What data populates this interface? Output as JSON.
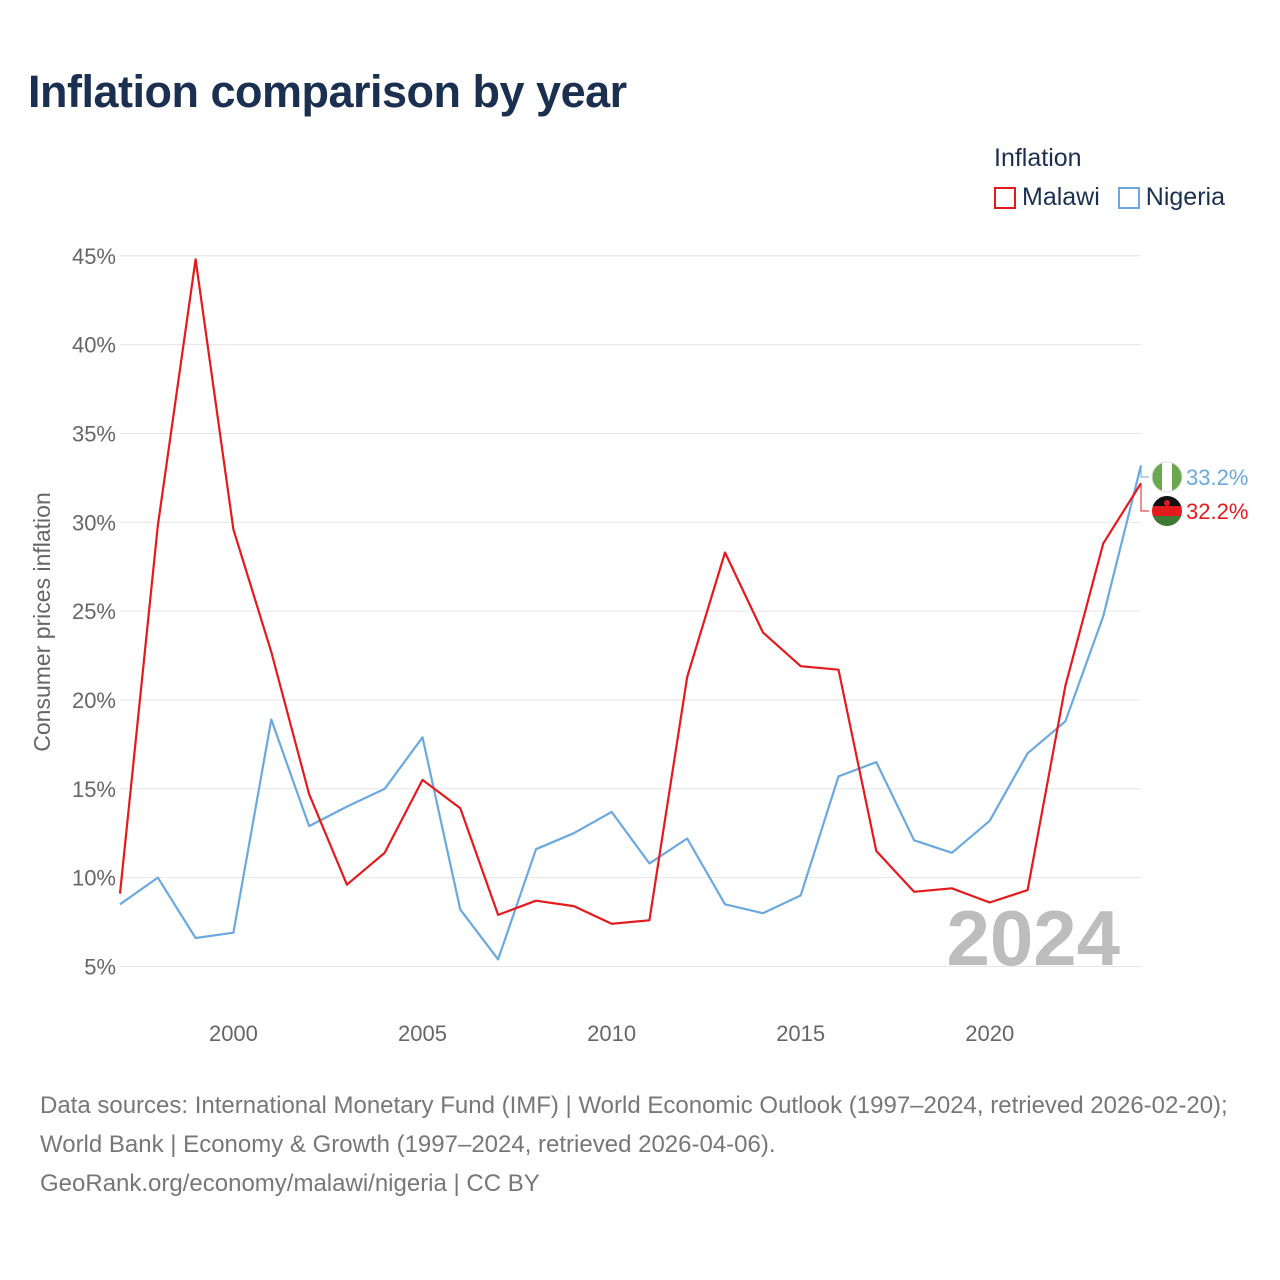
{
  "title": "Inflation comparison by year",
  "legend": {
    "title": "Inflation",
    "items": [
      {
        "label": "Malawi",
        "color": "#e41a1c"
      },
      {
        "label": "Nigeria",
        "color": "#6aa9e0"
      }
    ]
  },
  "watermark_year": "2024",
  "footer": {
    "sources": "Data sources: International Monetary Fund (IMF) | World Economic Outlook (1997–2024, retrieved 2026-02-20); World Bank | Economy & Growth (1997–2024, retrieved 2026-04-06).",
    "credit": "GeoRank.org/economy/malawi/nigeria | CC BY"
  },
  "chart_data": {
    "type": "line",
    "title": "Inflation comparison by year",
    "xlabel": "",
    "ylabel": "Consumer prices inflation",
    "xlim": [
      1997,
      2024
    ],
    "ylim": [
      3,
      46
    ],
    "x_ticks": [
      2000,
      2005,
      2010,
      2015,
      2020
    ],
    "y_ticks": [
      5,
      10,
      15,
      20,
      25,
      30,
      35,
      40,
      45
    ],
    "y_tick_labels": [
      "5%",
      "10%",
      "15%",
      "20%",
      "25%",
      "30%",
      "35%",
      "40%",
      "45%"
    ],
    "grid": true,
    "legend_position": "top-right",
    "x": [
      1997,
      1998,
      1999,
      2000,
      2001,
      2002,
      2003,
      2004,
      2005,
      2006,
      2007,
      2008,
      2009,
      2010,
      2011,
      2012,
      2013,
      2014,
      2015,
      2016,
      2017,
      2018,
      2019,
      2020,
      2021,
      2022,
      2023,
      2024
    ],
    "series": [
      {
        "name": "Malawi",
        "color": "#e41a1c",
        "values": [
          9.1,
          29.8,
          44.8,
          29.6,
          22.7,
          14.7,
          9.6,
          11.4,
          15.5,
          13.9,
          7.9,
          8.7,
          8.4,
          7.4,
          7.6,
          21.3,
          28.3,
          23.8,
          21.9,
          21.7,
          11.5,
          9.2,
          9.4,
          8.6,
          9.3,
          20.8,
          28.8,
          32.2
        ],
        "end_label": "32.2%"
      },
      {
        "name": "Nigeria",
        "color": "#6aa9e0",
        "values": [
          8.5,
          10.0,
          6.6,
          6.9,
          18.9,
          12.9,
          14.0,
          15.0,
          17.9,
          8.2,
          5.4,
          11.6,
          12.5,
          13.7,
          10.8,
          12.2,
          8.5,
          8.0,
          9.0,
          15.7,
          16.5,
          12.1,
          11.4,
          13.2,
          17.0,
          18.8,
          24.7,
          33.2
        ],
        "end_label": "33.2%"
      }
    ]
  }
}
